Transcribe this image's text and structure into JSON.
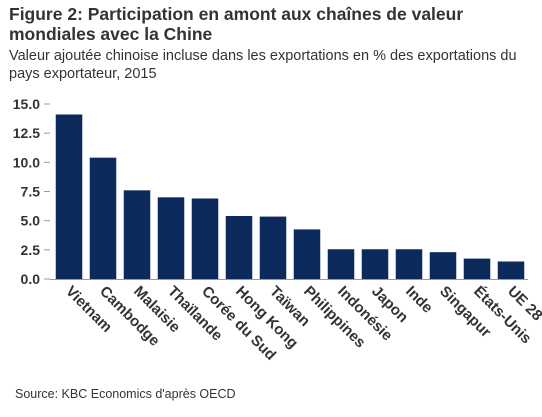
{
  "title": "Figure 2: Participation en amont aux chaînes de valeur mondiales avec la Chine",
  "subtitle": "Valeur ajoutée chinoise incluse dans les exportations en % des exportations du pays exportateur, 2015",
  "source": "Source: KBC Economics d'après OECD",
  "colors": {
    "bar": "#0b2a5b",
    "axis": "#999999",
    "text": "#333333"
  },
  "chart_data": {
    "type": "bar",
    "categories": [
      "Vietnam",
      "Cambodge",
      "Malaisie",
      "Thaïlande",
      "Corée du Sud",
      "Hong Kong",
      "Taïwan",
      "Philippines",
      "Indonésie",
      "Japon",
      "Inde",
      "Singapur",
      "États-Unis",
      "UE 28"
    ],
    "values": [
      14.1,
      10.4,
      7.6,
      7.0,
      6.9,
      5.4,
      5.35,
      4.25,
      2.55,
      2.55,
      2.55,
      2.3,
      1.75,
      1.5
    ],
    "ylim": [
      0,
      15
    ],
    "yticks": [
      "0.0",
      "2.5",
      "5.0",
      "7.5",
      "10.0",
      "12.5",
      "15.0"
    ],
    "grid": false,
    "xlabel": "",
    "ylabel": ""
  }
}
